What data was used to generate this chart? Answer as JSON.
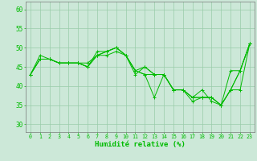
{
  "title": "",
  "xlabel": "Humidité relative (%)",
  "ylabel": "",
  "background_color": "#cce8d8",
  "grid_color": "#99ccaa",
  "line_color": "#00bb00",
  "xlim_min": -0.5,
  "xlim_max": 23.5,
  "ylim_min": 28,
  "ylim_max": 62,
  "yticks": [
    30,
    35,
    40,
    45,
    50,
    55,
    60
  ],
  "xticks": [
    0,
    1,
    2,
    3,
    4,
    5,
    6,
    7,
    8,
    9,
    10,
    11,
    12,
    13,
    14,
    15,
    16,
    17,
    18,
    19,
    20,
    21,
    22,
    23
  ],
  "series": [
    [
      43,
      48,
      47,
      46,
      46,
      46,
      46,
      48,
      49,
      50,
      48,
      43,
      45,
      43,
      43,
      39,
      39,
      37,
      37,
      37,
      35,
      39,
      44,
      51
    ],
    [
      43,
      47,
      47,
      46,
      46,
      46,
      45,
      49,
      49,
      50,
      48,
      44,
      43,
      43,
      43,
      39,
      39,
      36,
      37,
      37,
      35,
      44,
      44,
      51
    ],
    [
      43,
      47,
      47,
      46,
      46,
      46,
      45,
      48,
      49,
      50,
      48,
      44,
      45,
      43,
      43,
      39,
      39,
      37,
      37,
      37,
      35,
      39,
      39,
      51
    ],
    [
      43,
      47,
      47,
      46,
      46,
      46,
      45,
      48,
      48,
      49,
      48,
      44,
      43,
      37,
      43,
      39,
      39,
      37,
      39,
      36,
      35,
      39,
      44,
      51
    ]
  ],
  "xlabel_fontsize": 6.5,
  "xtick_fontsize": 4.8,
  "ytick_fontsize": 5.5,
  "linewidth": 0.7,
  "markersize": 2.5
}
